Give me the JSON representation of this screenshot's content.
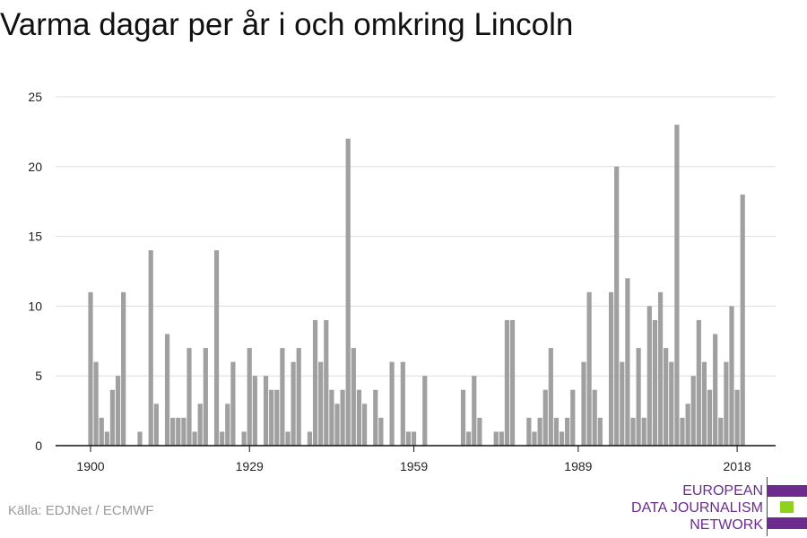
{
  "title": "Varma dagar per år i och omkring Lincoln",
  "source": "Källa: EDJNet / ECMWF",
  "logo": {
    "lines": [
      "EUROPEAN",
      "DATA JOURNALISM",
      "NETWORK"
    ],
    "colors": {
      "purple": "#6c2c8e",
      "green": "#8fd21d"
    }
  },
  "colors": {
    "bar": "#a0a0a0",
    "grid": "#dddddd",
    "axis": "#111111"
  },
  "chart_data": {
    "type": "bar",
    "title": "Varma dagar per år i och omkring Lincoln",
    "xlabel": "",
    "ylabel": "",
    "ylim": [
      0,
      25
    ],
    "yticks": [
      0,
      5,
      10,
      15,
      20,
      25
    ],
    "xticks": [
      1900,
      1929,
      1959,
      1989,
      2018
    ],
    "grid": true,
    "x_start": 1900,
    "values": [
      11,
      6,
      2,
      1,
      4,
      5,
      11,
      0,
      0,
      1,
      0,
      14,
      3,
      0,
      8,
      2,
      2,
      2,
      7,
      1,
      3,
      7,
      0,
      14,
      1,
      3,
      6,
      0,
      1,
      7,
      5,
      0,
      5,
      4,
      4,
      7,
      1,
      6,
      7,
      0,
      1,
      9,
      6,
      9,
      4,
      3,
      4,
      22,
      7,
      4,
      3,
      0,
      4,
      2,
      0,
      6,
      0,
      6,
      1,
      1,
      0,
      5,
      0,
      0,
      0,
      0,
      0,
      0,
      4,
      1,
      5,
      2,
      0,
      0,
      1,
      1,
      9,
      9,
      0,
      0,
      2,
      1,
      2,
      4,
      7,
      2,
      1,
      2,
      4,
      0,
      6,
      11,
      4,
      2,
      0,
      11,
      20,
      6,
      12,
      2,
      7,
      2,
      10,
      9,
      11,
      7,
      6,
      23,
      2,
      3,
      5,
      9,
      6,
      4,
      8,
      2,
      6,
      10,
      4,
      18
    ]
  }
}
